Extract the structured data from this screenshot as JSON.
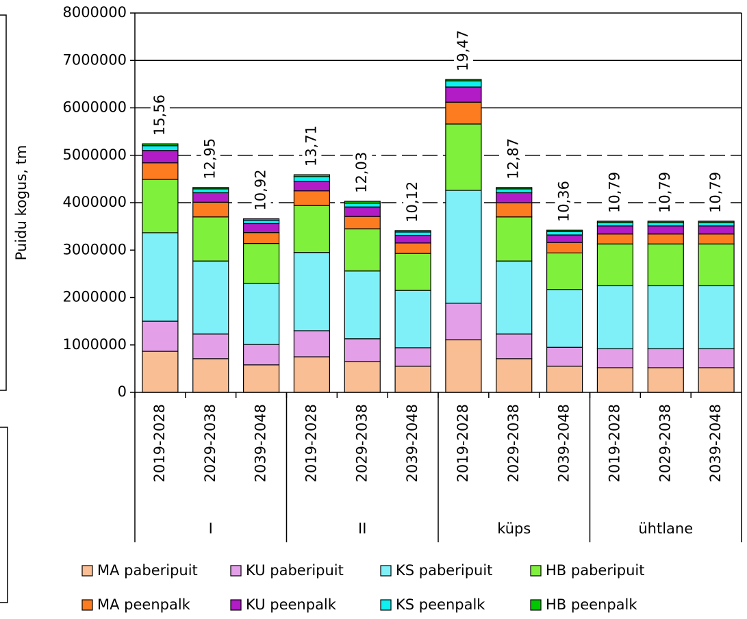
{
  "chart_data": {
    "type": "stacked_bar",
    "ylabel": "Puidu kogus, tm",
    "categories": [
      "2019-2028",
      "2029-2038",
      "2039-2048",
      "2019-2028",
      "2029-2038",
      "2039-2048",
      "2019-2028",
      "2029-2038",
      "2039-2048",
      "2019-2028",
      "2029-2038",
      "2039-2048"
    ],
    "groups": [
      {
        "label": "I",
        "size": 3
      },
      {
        "label": "II",
        "size": 3
      },
      {
        "label": "küps",
        "size": 3
      },
      {
        "label": "ühtlane",
        "size": 3
      }
    ],
    "annotations": [
      "15,56",
      "12,95",
      "10,92",
      "13,71",
      "12,03",
      "10,12",
      "19,47",
      "12,87",
      "10,36",
      "10,79",
      "10,79",
      "10,79"
    ],
    "series": [
      {
        "name": "MA paberipuit",
        "color": "#f9be94",
        "values": [
          866000,
          710000,
          580000,
          750000,
          650000,
          550000,
          1110000,
          710000,
          550000,
          520000,
          520000,
          520000
        ]
      },
      {
        "name": "KU paberipuit",
        "color": "#e3a0e8",
        "values": [
          635000,
          520000,
          430000,
          550000,
          480000,
          390000,
          770000,
          520000,
          400000,
          400000,
          400000,
          400000
        ]
      },
      {
        "name": "KS paberipuit",
        "color": "#80f0f8",
        "values": [
          1865000,
          1540000,
          1290000,
          1650000,
          1430000,
          1210000,
          2380000,
          1540000,
          1220000,
          1330000,
          1330000,
          1330000
        ]
      },
      {
        "name": "HB paberipuit",
        "color": "#7ff03c",
        "values": [
          1125000,
          930000,
          840000,
          990000,
          890000,
          780000,
          1400000,
          930000,
          770000,
          880000,
          880000,
          880000
        ]
      },
      {
        "name": "MA peenpalk",
        "color": "#fd7c20",
        "values": [
          350000,
          310000,
          230000,
          310000,
          260000,
          220000,
          460000,
          300000,
          220000,
          210000,
          210000,
          210000
        ]
      },
      {
        "name": "KU peenpalk",
        "color": "#b21cc7",
        "values": [
          260000,
          200000,
          190000,
          200000,
          200000,
          160000,
          320000,
          210000,
          160000,
          170000,
          170000,
          170000
        ]
      },
      {
        "name": "KS peenpalk",
        "color": "#0ff0f0",
        "values": [
          100000,
          80000,
          70000,
          100000,
          80000,
          70000,
          130000,
          80000,
          70000,
          70000,
          70000,
          70000
        ]
      },
      {
        "name": "HB peenpalk",
        "color": "#00c800",
        "values": [
          40000,
          30000,
          30000,
          40000,
          40000,
          30000,
          30000,
          30000,
          30000,
          30000,
          30000,
          30000
        ]
      }
    ],
    "ylim": [
      0,
      8000000
    ],
    "yticks": [
      0,
      1000000,
      2000000,
      3000000,
      4000000,
      5000000,
      6000000,
      7000000,
      8000000
    ],
    "ygrid": [
      {
        "value": 4000000,
        "dashed": true
      },
      {
        "value": 5000000,
        "dashed": true
      },
      {
        "value": 6000000,
        "dashed": false
      },
      {
        "value": 7000000,
        "dashed": false
      }
    ]
  }
}
